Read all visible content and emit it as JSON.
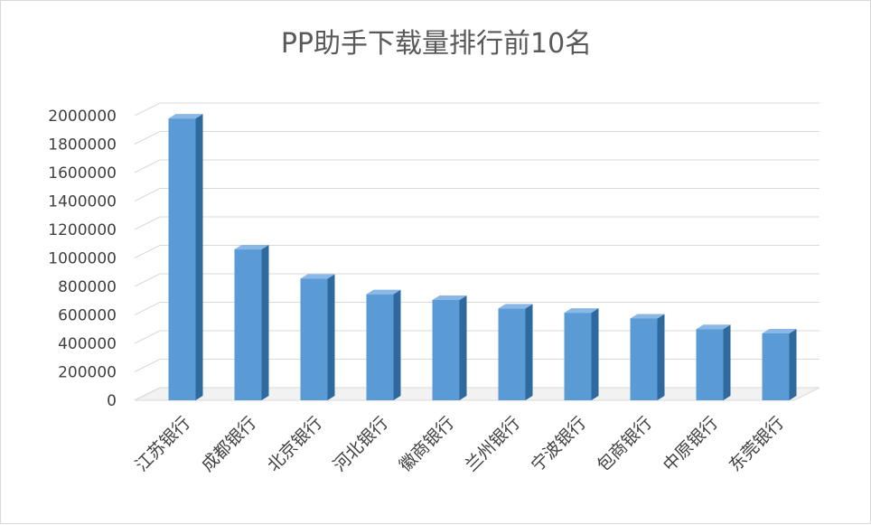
{
  "chart_data": {
    "type": "bar",
    "title": "PP助手下载量排行前10名",
    "xlabel": "",
    "ylabel": "",
    "categories": [
      "江苏银行",
      "成都银行",
      "北京银行",
      "河北银行",
      "徽商银行",
      "兰州银行",
      "宁波银行",
      "包商银行",
      "中原银行",
      "东莞银行"
    ],
    "values": [
      1980000,
      1060000,
      855000,
      745000,
      705000,
      645000,
      615000,
      575000,
      500000,
      470000
    ],
    "ylim": [
      0,
      2000000
    ],
    "yticks": [
      "0",
      "200000",
      "400000",
      "600000",
      "800000",
      "1000000",
      "1200000",
      "1400000",
      "1600000",
      "1800000",
      "2000000"
    ],
    "grid": true,
    "legend": "none",
    "colors": {
      "bar_front": "#5b9bd5",
      "bar_side": "#2e6a9e",
      "bar_top": "#8ab8e6",
      "grid": "#d9d9d9"
    }
  }
}
